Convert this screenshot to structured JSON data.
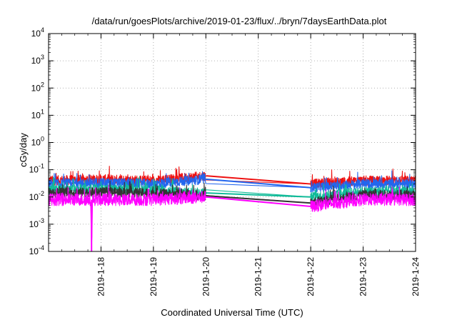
{
  "chart_data": {
    "type": "line",
    "title": "/data/run/goesPlots/archive/2019-01-23/flux/../bryn/7daysEarthData.plot",
    "xlabel": "Coordinated Universal Time (UTC)",
    "ylabel": "cGy/day",
    "yscale": "log",
    "ylim_exp": [
      -4,
      4
    ],
    "y_ticks": [
      {
        "base": "10",
        "exp": "-4"
      },
      {
        "base": "10",
        "exp": "-3"
      },
      {
        "base": "10",
        "exp": "-2"
      },
      {
        "base": "10",
        "exp": "-1"
      },
      {
        "base": "10",
        "exp": "0"
      },
      {
        "base": "10",
        "exp": "1"
      },
      {
        "base": "10",
        "exp": "2"
      },
      {
        "base": "10",
        "exp": "3"
      },
      {
        "base": "10",
        "exp": "4"
      }
    ],
    "xlim": [
      "2019-01-17 00:00",
      "2019-01-24 00:00"
    ],
    "x_tick_labels": [
      "2019-1-18",
      "2019-1-19",
      "2019-1-20",
      "2019-1-21",
      "2019-1-22",
      "2019-1-23",
      "2019-1-24"
    ],
    "x_tick_days": [
      18,
      19,
      20,
      21,
      22,
      23,
      24
    ],
    "grid": true,
    "legend": "none",
    "data_gap": {
      "start_day": 20.0,
      "end_day": 22.0
    },
    "series": [
      {
        "color": "#ee1111",
        "values": [
          {
            "day": 17.0,
            "v": 0.04
          },
          {
            "day": 18.0,
            "v": 0.045
          },
          {
            "day": 19.0,
            "v": 0.04
          },
          {
            "day": 20.0,
            "v": 0.06
          },
          {
            "day": 22.0,
            "v": 0.03
          },
          {
            "day": 23.0,
            "v": 0.04
          },
          {
            "day": 24.0,
            "v": 0.04
          }
        ]
      },
      {
        "color": "#2266ee",
        "values": [
          {
            "day": 17.0,
            "v": 0.03
          },
          {
            "day": 18.0,
            "v": 0.033
          },
          {
            "day": 19.0,
            "v": 0.03
          },
          {
            "day": 20.0,
            "v": 0.045
          },
          {
            "day": 22.0,
            "v": 0.022
          },
          {
            "day": 23.0,
            "v": 0.03
          },
          {
            "day": 24.0,
            "v": 0.03
          }
        ]
      },
      {
        "color": "#11bb99",
        "values": [
          {
            "day": 17.0,
            "v": 0.018
          },
          {
            "day": 18.0,
            "v": 0.02
          },
          {
            "day": 19.0,
            "v": 0.018
          },
          {
            "day": 20.0,
            "v": 0.014
          },
          {
            "day": 22.0,
            "v": 0.01
          },
          {
            "day": 23.0,
            "v": 0.016
          },
          {
            "day": 24.0,
            "v": 0.016
          }
        ]
      },
      {
        "color": "#333333",
        "values": [
          {
            "day": 17.0,
            "v": 0.014
          },
          {
            "day": 18.0,
            "v": 0.015
          },
          {
            "day": 19.0,
            "v": 0.014
          },
          {
            "day": 20.0,
            "v": 0.011
          },
          {
            "day": 22.0,
            "v": 0.006
          },
          {
            "day": 23.0,
            "v": 0.012
          },
          {
            "day": 24.0,
            "v": 0.012
          }
        ]
      },
      {
        "color": "#ff00ff",
        "values": [
          {
            "day": 17.0,
            "v": 0.008
          },
          {
            "day": 17.8,
            "v": 0.008
          },
          {
            "day": 17.82,
            "v": 0.0001
          },
          {
            "day": 17.84,
            "v": 0.008
          },
          {
            "day": 19.0,
            "v": 0.008
          },
          {
            "day": 20.0,
            "v": 0.01
          },
          {
            "day": 22.0,
            "v": 0.0045
          },
          {
            "day": 23.0,
            "v": 0.008
          },
          {
            "day": 24.0,
            "v": 0.008
          }
        ]
      }
    ]
  }
}
